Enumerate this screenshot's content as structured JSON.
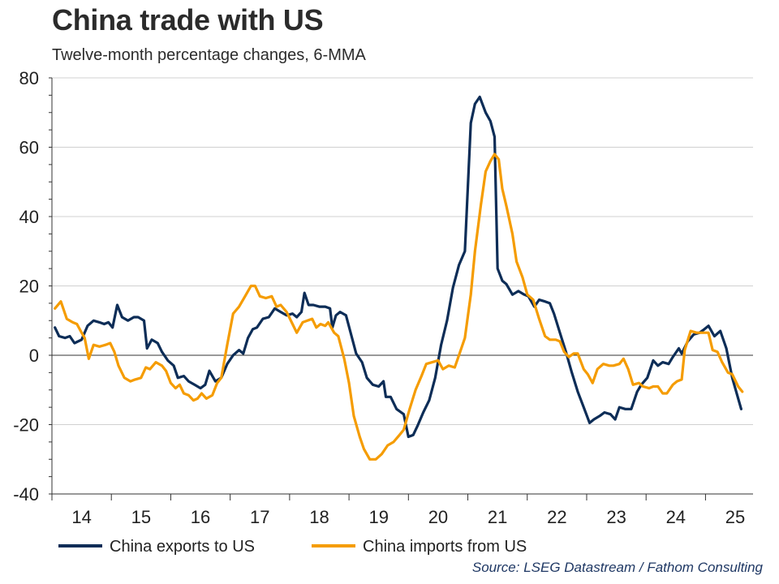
{
  "header": {
    "title": "China trade with US",
    "subtitle": "Twelve-month percentage changes, 6-MMA"
  },
  "footer": {
    "source": "Source: LSEG Datastream / Fathom Consulting"
  },
  "colors": {
    "exports": "#0d2d57",
    "imports": "#f59c00",
    "grid": "#d0d0d0",
    "axis": "#333333"
  },
  "chart_data": {
    "type": "line",
    "title": "China trade with US",
    "subtitle": "Twelve-month percentage changes, 6-MMA",
    "xlabel": "",
    "ylabel": "",
    "xlim": [
      13.5,
      25.3
    ],
    "ylim": [
      -40,
      80
    ],
    "y_ticks": [
      80,
      60,
      40,
      20,
      0,
      -20,
      -40
    ],
    "x_tick_labels": [
      "14",
      "15",
      "16",
      "17",
      "18",
      "19",
      "20",
      "21",
      "22",
      "23",
      "24",
      "25"
    ],
    "x_tick_positions": [
      14,
      15,
      16,
      17,
      18,
      19,
      20,
      21,
      22,
      23,
      24,
      25
    ],
    "grid": true,
    "legend_position": "bottom",
    "series": [
      {
        "name": "China exports to US",
        "color": "#0d2d57",
        "points": [
          [
            13.55,
            8
          ],
          [
            13.62,
            5.5
          ],
          [
            13.72,
            5
          ],
          [
            13.8,
            5.5
          ],
          [
            13.88,
            3.5
          ],
          [
            14.0,
            4.5
          ],
          [
            14.1,
            8.5
          ],
          [
            14.2,
            10
          ],
          [
            14.3,
            9.5
          ],
          [
            14.38,
            9
          ],
          [
            14.45,
            9.5
          ],
          [
            14.52,
            8
          ],
          [
            14.6,
            14.5
          ],
          [
            14.68,
            11
          ],
          [
            14.78,
            10
          ],
          [
            14.88,
            11
          ],
          [
            14.95,
            11
          ],
          [
            15.05,
            10
          ],
          [
            15.1,
            2
          ],
          [
            15.18,
            4.5
          ],
          [
            15.28,
            3.5
          ],
          [
            15.35,
            1
          ],
          [
            15.45,
            -1.5
          ],
          [
            15.55,
            -3
          ],
          [
            15.62,
            -6.5
          ],
          [
            15.72,
            -6
          ],
          [
            15.8,
            -7.5
          ],
          [
            15.9,
            -8.5
          ],
          [
            16.0,
            -9.5
          ],
          [
            16.08,
            -8.5
          ],
          [
            16.15,
            -4.5
          ],
          [
            16.25,
            -7.5
          ],
          [
            16.35,
            -6.5
          ],
          [
            16.45,
            -2.5
          ],
          [
            16.55,
            0
          ],
          [
            16.65,
            1.5
          ],
          [
            16.72,
            0.5
          ],
          [
            16.8,
            5
          ],
          [
            16.88,
            7.5
          ],
          [
            16.95,
            8
          ],
          [
            17.05,
            10.5
          ],
          [
            17.15,
            11
          ],
          [
            17.25,
            13.5
          ],
          [
            17.35,
            12.5
          ],
          [
            17.45,
            11.5
          ],
          [
            17.55,
            12
          ],
          [
            17.62,
            11
          ],
          [
            17.7,
            12.5
          ],
          [
            17.75,
            18
          ],
          [
            17.82,
            14.5
          ],
          [
            17.9,
            14.5
          ],
          [
            18.0,
            14
          ],
          [
            18.1,
            14
          ],
          [
            18.18,
            13.5
          ],
          [
            18.22,
            8
          ],
          [
            18.28,
            11.5
          ],
          [
            18.35,
            12.5
          ],
          [
            18.45,
            11.5
          ],
          [
            18.55,
            5
          ],
          [
            18.62,
            0.5
          ],
          [
            18.72,
            -2
          ],
          [
            18.8,
            -6.5
          ],
          [
            18.9,
            -8.5
          ],
          [
            19.0,
            -9
          ],
          [
            19.08,
            -7.5
          ],
          [
            19.12,
            -12
          ],
          [
            19.2,
            -12
          ],
          [
            19.3,
            -15.5
          ],
          [
            19.42,
            -17
          ],
          [
            19.5,
            -23.5
          ],
          [
            19.58,
            -23
          ],
          [
            19.65,
            -20.5
          ],
          [
            19.75,
            -16.5
          ],
          [
            19.85,
            -13
          ],
          [
            19.95,
            -6.5
          ],
          [
            20.05,
            3
          ],
          [
            20.15,
            10
          ],
          [
            20.25,
            19.5
          ],
          [
            20.35,
            26
          ],
          [
            20.45,
            30
          ],
          [
            20.55,
            67
          ],
          [
            20.62,
            72.5
          ],
          [
            20.7,
            74.5
          ],
          [
            20.8,
            70
          ],
          [
            20.88,
            67.5
          ],
          [
            20.95,
            63
          ],
          [
            21.0,
            25
          ],
          [
            21.08,
            21.5
          ],
          [
            21.15,
            20.5
          ],
          [
            21.25,
            17.5
          ],
          [
            21.35,
            18.5
          ],
          [
            21.45,
            17.5
          ],
          [
            21.52,
            17
          ],
          [
            21.62,
            14
          ],
          [
            21.7,
            16
          ],
          [
            21.8,
            15.5
          ],
          [
            21.88,
            15
          ],
          [
            21.95,
            12
          ],
          [
            22.05,
            6.5
          ],
          [
            22.15,
            1
          ],
          [
            22.25,
            -5
          ],
          [
            22.35,
            -10.5
          ],
          [
            22.45,
            -15
          ],
          [
            22.55,
            -19.5
          ],
          [
            22.62,
            -18.5
          ],
          [
            22.72,
            -17.5
          ],
          [
            22.8,
            -16.5
          ],
          [
            22.9,
            -17
          ],
          [
            22.98,
            -18.5
          ],
          [
            23.05,
            -15
          ],
          [
            23.15,
            -15.5
          ],
          [
            23.25,
            -15.5
          ],
          [
            23.35,
            -10.5
          ],
          [
            23.42,
            -8.5
          ],
          [
            23.52,
            -6.5
          ],
          [
            23.62,
            -1.5
          ],
          [
            23.7,
            -3
          ],
          [
            23.78,
            -2
          ],
          [
            23.88,
            -2.5
          ],
          [
            23.95,
            -0.5
          ],
          [
            24.05,
            2
          ],
          [
            24.1,
            0.5
          ],
          [
            24.2,
            4
          ],
          [
            24.3,
            6
          ],
          [
            24.4,
            6.5
          ],
          [
            24.48,
            7.5
          ],
          [
            24.55,
            8.5
          ],
          [
            24.65,
            5.5
          ],
          [
            24.75,
            7
          ],
          [
            24.85,
            2
          ],
          [
            24.95,
            -6.5
          ],
          [
            25.1,
            -15.5
          ]
        ]
      },
      {
        "name": "China imports from US",
        "color": "#f59c00",
        "points": [
          [
            13.55,
            13.5
          ],
          [
            13.65,
            15.5
          ],
          [
            13.75,
            10.5
          ],
          [
            13.85,
            9.5
          ],
          [
            13.92,
            9
          ],
          [
            14.0,
            6.5
          ],
          [
            14.05,
            5
          ],
          [
            14.12,
            -1
          ],
          [
            14.2,
            3
          ],
          [
            14.3,
            2.5
          ],
          [
            14.4,
            3
          ],
          [
            14.48,
            3.5
          ],
          [
            14.55,
            1
          ],
          [
            14.62,
            -3
          ],
          [
            14.72,
            -6.5
          ],
          [
            14.82,
            -7.5
          ],
          [
            14.9,
            -7
          ],
          [
            15.0,
            -6.5
          ],
          [
            15.08,
            -3.5
          ],
          [
            15.15,
            -4
          ],
          [
            15.25,
            -2
          ],
          [
            15.35,
            -3
          ],
          [
            15.42,
            -4.5
          ],
          [
            15.5,
            -8
          ],
          [
            15.58,
            -9.5
          ],
          [
            15.65,
            -8.5
          ],
          [
            15.72,
            -11
          ],
          [
            15.8,
            -11.5
          ],
          [
            15.88,
            -13
          ],
          [
            15.95,
            -12.5
          ],
          [
            16.02,
            -11
          ],
          [
            16.1,
            -12.5
          ],
          [
            16.2,
            -11.5
          ],
          [
            16.28,
            -8
          ],
          [
            16.35,
            -6.5
          ],
          [
            16.45,
            3
          ],
          [
            16.55,
            12
          ],
          [
            16.65,
            14
          ],
          [
            16.75,
            17
          ],
          [
            16.85,
            20
          ],
          [
            16.92,
            20
          ],
          [
            17.0,
            17
          ],
          [
            17.1,
            16.5
          ],
          [
            17.2,
            17
          ],
          [
            17.28,
            14
          ],
          [
            17.35,
            14.5
          ],
          [
            17.45,
            12.5
          ],
          [
            17.55,
            9
          ],
          [
            17.62,
            6.5
          ],
          [
            17.72,
            9.5
          ],
          [
            17.8,
            10
          ],
          [
            17.88,
            10.5
          ],
          [
            17.95,
            8
          ],
          [
            18.02,
            9
          ],
          [
            18.1,
            8.5
          ],
          [
            18.15,
            9.5
          ],
          [
            18.25,
            6.5
          ],
          [
            18.32,
            5.5
          ],
          [
            18.42,
            -1
          ],
          [
            18.5,
            -8
          ],
          [
            18.58,
            -17.5
          ],
          [
            18.68,
            -23.5
          ],
          [
            18.75,
            -27
          ],
          [
            18.85,
            -30
          ],
          [
            18.95,
            -30
          ],
          [
            19.05,
            -28.5
          ],
          [
            19.15,
            -26
          ],
          [
            19.25,
            -25
          ],
          [
            19.35,
            -23
          ],
          [
            19.42,
            -21.5
          ],
          [
            19.52,
            -15.5
          ],
          [
            19.62,
            -10
          ],
          [
            19.72,
            -6
          ],
          [
            19.8,
            -2.5
          ],
          [
            19.9,
            -2
          ],
          [
            20.0,
            -1.5
          ],
          [
            20.08,
            -4
          ],
          [
            20.18,
            -3
          ],
          [
            20.28,
            -3.5
          ],
          [
            20.35,
            0
          ],
          [
            20.45,
            5
          ],
          [
            20.55,
            17.5
          ],
          [
            20.62,
            30
          ],
          [
            20.72,
            43.5
          ],
          [
            20.8,
            53
          ],
          [
            20.88,
            56
          ],
          [
            20.95,
            58
          ],
          [
            21.02,
            56.5
          ],
          [
            21.08,
            48
          ],
          [
            21.15,
            43
          ],
          [
            21.25,
            35
          ],
          [
            21.32,
            27
          ],
          [
            21.42,
            22.5
          ],
          [
            21.5,
            17.5
          ],
          [
            21.6,
            16
          ],
          [
            21.7,
            10.5
          ],
          [
            21.8,
            5.5
          ],
          [
            21.88,
            4.5
          ],
          [
            21.98,
            4.5
          ],
          [
            22.05,
            4
          ],
          [
            22.12,
            1
          ],
          [
            22.2,
            -0.5
          ],
          [
            22.28,
            0.5
          ],
          [
            22.35,
            0.5
          ],
          [
            22.45,
            -4
          ],
          [
            22.52,
            -5.5
          ],
          [
            22.6,
            -8
          ],
          [
            22.68,
            -4
          ],
          [
            22.78,
            -2.5
          ],
          [
            22.88,
            -3
          ],
          [
            22.95,
            -3
          ],
          [
            23.05,
            -2.5
          ],
          [
            23.12,
            -1
          ],
          [
            23.2,
            -4
          ],
          [
            23.28,
            -8.5
          ],
          [
            23.38,
            -8
          ],
          [
            23.45,
            -9
          ],
          [
            23.55,
            -9.5
          ],
          [
            23.62,
            -9
          ],
          [
            23.7,
            -9
          ],
          [
            23.78,
            -11
          ],
          [
            23.85,
            -11
          ],
          [
            23.95,
            -8.5
          ],
          [
            24.02,
            -7.5
          ],
          [
            24.1,
            -7
          ],
          [
            24.15,
            1.5
          ],
          [
            24.25,
            7
          ],
          [
            24.35,
            6.5
          ],
          [
            24.45,
            6.5
          ],
          [
            24.55,
            6.5
          ],
          [
            24.62,
            1.5
          ],
          [
            24.7,
            1
          ],
          [
            24.78,
            -2
          ],
          [
            24.88,
            -5
          ],
          [
            24.95,
            -5.5
          ],
          [
            25.05,
            -9
          ],
          [
            25.12,
            -10.5
          ]
        ]
      }
    ]
  }
}
